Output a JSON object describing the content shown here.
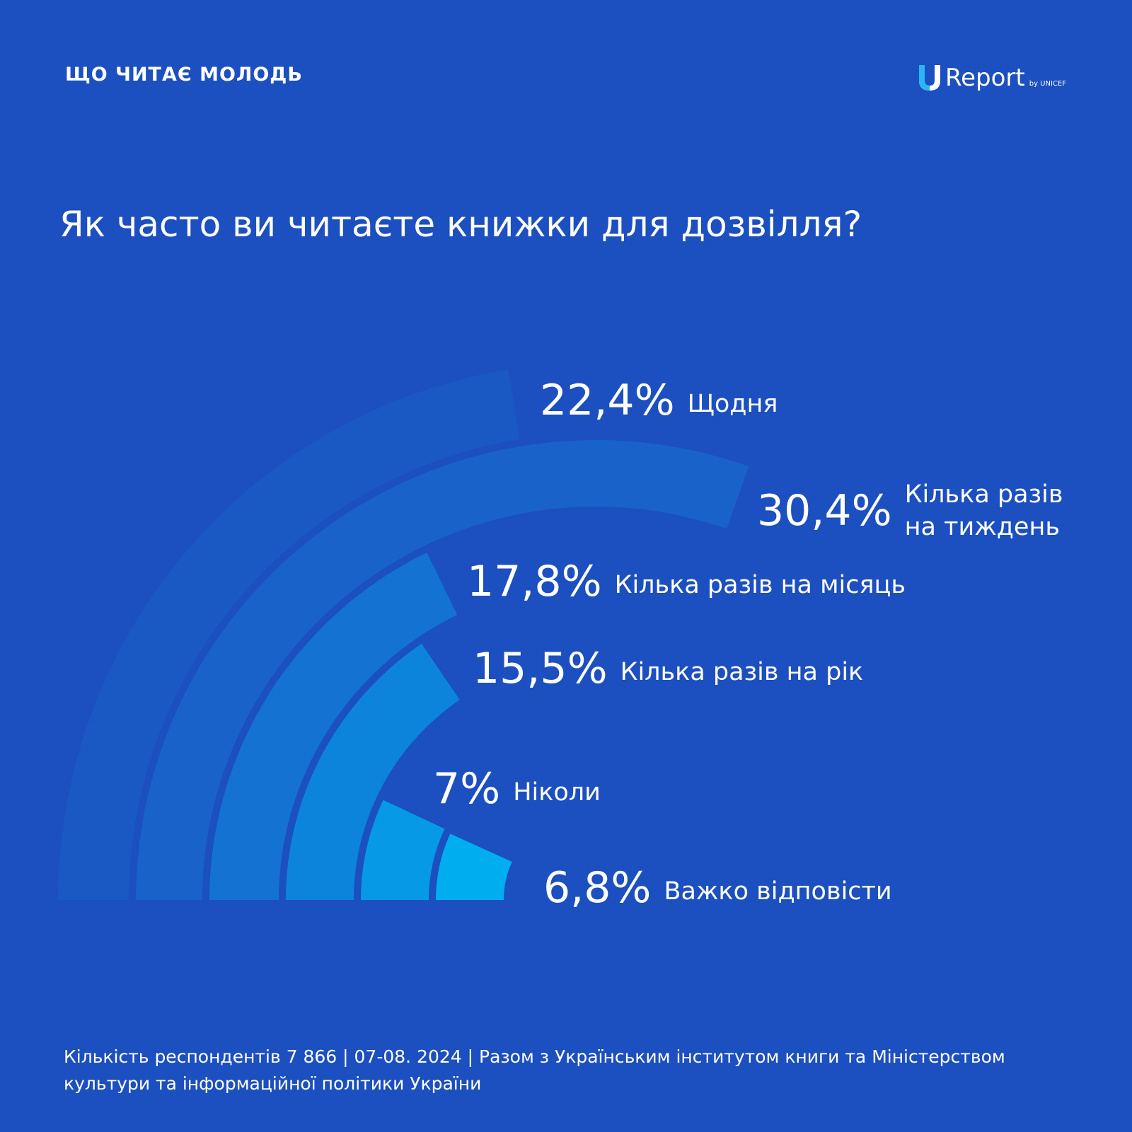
{
  "header": {
    "kicker": "ЩО ЧИТАЄ МОЛОДЬ",
    "logo_word": "Report",
    "logo_sub": "by UNICEF"
  },
  "title": "Як часто ви читаєте книжки для дозвілля?",
  "chart_data": {
    "type": "pie",
    "title": "Як часто ви читаєте книжки для дозвілля?",
    "series": [
      {
        "label": "Щодня",
        "value": 22.4,
        "display": "22,4%",
        "color": "#1a58c4"
      },
      {
        "label": "Кілька разів на тиждень",
        "label_lines": [
          "Кілька разів",
          "на тиждень"
        ],
        "value": 30.4,
        "display": "30,4%",
        "color": "#1862c9"
      },
      {
        "label": "Кілька разів на місяць",
        "value": 17.8,
        "display": "17,8%",
        "color": "#1472d2"
      },
      {
        "label": "Кілька разів на рік",
        "value": 15.5,
        "display": "15,5%",
        "color": "#0d84dc"
      },
      {
        "label": "Ніколи",
        "value": 7,
        "display": "7%",
        "color": "#0699e6"
      },
      {
        "label": "Важко відповісти",
        "value": 6.8,
        "display": "6,8%",
        "color": "#00aeef"
      }
    ]
  },
  "footer": {
    "source": "Кількість респондентів 7 866 | 07-08. 2024 | Разом з Українським інститутом книги та Міністерством культури та інформаційної політики України"
  }
}
